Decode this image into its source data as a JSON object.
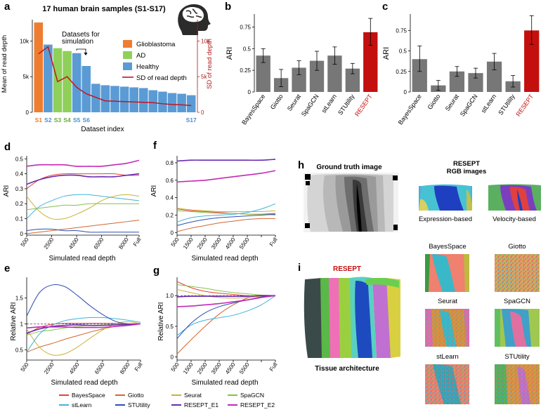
{
  "panels": {
    "a": {
      "letter": "a",
      "title": "17 human brain samples (S1-S17)",
      "annotation": "Datasets for\nsimulation",
      "secondary_ylabel": "SD of read depth"
    },
    "h": {
      "letter": "h",
      "ground_truth_title": "Ground truth image",
      "rgb_title": "RESEPT\nRGB images",
      "label_expression": "Expression-based",
      "label_velocity": "Velocity-based"
    },
    "i": {
      "letter": "i",
      "resept_title": "RESEPT",
      "caption": "Tissue architecture",
      "method_labels": [
        "BayesSpace",
        "Giotto",
        "Seurat",
        "SpaGCN",
        "stLearn",
        "STUtility"
      ]
    }
  },
  "legend": [
    {
      "name": "BayesSpace",
      "color": "#e8413a"
    },
    {
      "name": "Giotto",
      "color": "#d2672f"
    },
    {
      "name": "Seurat",
      "color": "#c9b236"
    },
    {
      "name": "SpaGCN",
      "color": "#86c149"
    },
    {
      "name": "stLearn",
      "color": "#3fb3d8"
    },
    {
      "name": "STUtility",
      "color": "#2c4fb3"
    },
    {
      "name": "RESEPT_E1",
      "color": "#6a2bb0"
    },
    {
      "name": "RESEPT_E2",
      "color": "#c229b8"
    }
  ],
  "chart_data": [
    {
      "id": "a",
      "type": "bar",
      "xlabel": "Dataset index",
      "ylabel": "Mean of read depth",
      "ylim": [
        0,
        13000
      ],
      "yticks": [
        0,
        5000,
        10000
      ],
      "ytick_labels": [
        "0",
        "5k",
        "10k"
      ],
      "y2ticks": [
        0,
        5000,
        10000
      ],
      "y2tick_labels": [
        "0",
        "5k",
        "10k"
      ],
      "x_labels": [
        {
          "i": 1,
          "text": "S1",
          "color": "#ef7d31"
        },
        {
          "i": 2,
          "text": "S2",
          "color": "#4a8fd2"
        },
        {
          "i": 3,
          "text": "S3",
          "color": "#6aab3a"
        },
        {
          "i": 4,
          "text": "S4",
          "color": "#6aab3a"
        },
        {
          "i": 5,
          "text": "S5",
          "color": "#4a8fd2"
        },
        {
          "i": 6,
          "text": "S6",
          "color": "#4a8fd2"
        },
        {
          "i": 17,
          "text": "S17",
          "color": "#4a8fd2"
        }
      ],
      "values": [
        12600,
        9500,
        9000,
        8600,
        8300,
        6500,
        4000,
        3800,
        3700,
        3600,
        3500,
        3400,
        3100,
        2900,
        2700,
        2600,
        2400
      ],
      "groups": [
        "Glioblastoma",
        "Healthy",
        "AD",
        "AD",
        "Healthy",
        "Healthy",
        "Healthy",
        "Healthy",
        "Healthy",
        "Healthy",
        "Healthy",
        "Healthy",
        "Healthy",
        "Healthy",
        "Healthy",
        "Healthy",
        "Healthy"
      ],
      "sd_values": [
        8200,
        9200,
        4300,
        5000,
        3500,
        2600,
        2100,
        1600,
        1550,
        1500,
        1450,
        1400,
        1350,
        1200,
        1100,
        1050,
        950
      ],
      "legend": [
        {
          "name": "Glioblastoma",
          "color": "#ef7d31"
        },
        {
          "name": "AD",
          "color": "#8fd05a"
        },
        {
          "name": "Healthy",
          "color": "#5b9bd5"
        },
        {
          "name": "SD of read depth",
          "color": "#c0161f"
        }
      ]
    },
    {
      "id": "b",
      "letter": "b",
      "type": "bar",
      "ylabel": "ARI",
      "ylim": [
        0,
        0.9
      ],
      "yticks": [
        0,
        0.25,
        0.5,
        0.75
      ],
      "ytick_labels": [
        "0",
        "0.25",
        "0.5",
        "0.75"
      ],
      "categories": [
        "BayesSpace",
        "Giotto",
        "Seurat",
        "SpaGCN",
        "stLearn",
        "STUtility",
        "RESEPT"
      ],
      "values": [
        0.42,
        0.16,
        0.28,
        0.36,
        0.42,
        0.27,
        0.69
      ],
      "err_low": [
        0.34,
        0.06,
        0.2,
        0.25,
        0.32,
        0.21,
        0.54
      ],
      "err_high": [
        0.5,
        0.26,
        0.36,
        0.47,
        0.52,
        0.33,
        0.85
      ],
      "colors": [
        "#777777",
        "#777777",
        "#777777",
        "#777777",
        "#777777",
        "#777777",
        "#c40f0f"
      ]
    },
    {
      "id": "c",
      "letter": "c",
      "type": "bar",
      "ylabel": "ARI",
      "ylim": [
        0,
        0.95
      ],
      "yticks": [
        0,
        0.25,
        0.5,
        0.75
      ],
      "ytick_labels": [
        "0",
        "0.25",
        "0.5",
        "0.75"
      ],
      "categories": [
        "BayesSpace",
        "Giotto",
        "Seurat",
        "SpaGCN",
        "stLearn",
        "STUtility",
        "RESEPT"
      ],
      "values": [
        0.4,
        0.08,
        0.25,
        0.23,
        0.37,
        0.13,
        0.75
      ],
      "err_low": [
        0.25,
        0.02,
        0.19,
        0.17,
        0.27,
        0.06,
        0.58
      ],
      "err_high": [
        0.56,
        0.14,
        0.31,
        0.29,
        0.47,
        0.2,
        0.93
      ],
      "colors": [
        "#777777",
        "#777777",
        "#777777",
        "#777777",
        "#777777",
        "#777777",
        "#c40f0f"
      ]
    },
    {
      "id": "d",
      "letter": "d",
      "type": "line",
      "xlabel": "Simulated read depth",
      "ylabel": "ARI",
      "ylim": [
        -0.01,
        0.52
      ],
      "yticks": [
        0,
        0.1,
        0.2,
        0.3,
        0.4,
        0.5
      ],
      "ytick_labels": [
        "0",
        "0.1",
        "0.2",
        "0.3",
        "0.4",
        "0.5"
      ],
      "x": [
        0,
        1,
        2,
        3,
        4,
        5,
        6,
        7,
        8,
        9
      ],
      "xlim": [
        0,
        9
      ],
      "xticks": [
        0,
        2,
        4,
        6,
        8,
        9
      ],
      "xtick_labels": [
        "500",
        "2500",
        "4500",
        "6500",
        "8000",
        "Full"
      ],
      "series": [
        {
          "name": "BayesSpace",
          "values": [
            0.3,
            0.36,
            0.39,
            0.4,
            0.4,
            0.4,
            0.4,
            0.4,
            0.39,
            0.39
          ]
        },
        {
          "name": "Giotto",
          "values": [
            0.0,
            0.01,
            0.02,
            0.03,
            0.04,
            0.05,
            0.06,
            0.07,
            0.08,
            0.09
          ]
        },
        {
          "name": "Seurat",
          "values": [
            0.25,
            0.15,
            0.1,
            0.1,
            0.13,
            0.17,
            0.22,
            0.25,
            0.26,
            0.25
          ]
        },
        {
          "name": "SpaGCN",
          "values": [
            0.16,
            0.17,
            0.18,
            0.19,
            0.19,
            0.2,
            0.2,
            0.2,
            0.2,
            0.2
          ]
        },
        {
          "name": "stLearn",
          "values": [
            0.1,
            0.18,
            0.22,
            0.25,
            0.26,
            0.26,
            0.25,
            0.24,
            0.23,
            0.22
          ]
        },
        {
          "name": "STUtility",
          "values": [
            0.02,
            0.03,
            0.03,
            0.02,
            0.02,
            0.01,
            0.01,
            0.01,
            0.01,
            0.01
          ]
        },
        {
          "name": "RESEPT_E1",
          "values": [
            0.33,
            0.36,
            0.38,
            0.39,
            0.39,
            0.38,
            0.38,
            0.38,
            0.39,
            0.4
          ]
        },
        {
          "name": "RESEPT_E2",
          "values": [
            0.45,
            0.46,
            0.46,
            0.46,
            0.45,
            0.45,
            0.45,
            0.46,
            0.47,
            0.49
          ]
        }
      ]
    },
    {
      "id": "f",
      "letter": "f",
      "type": "line",
      "xlabel": "Simulated read depth",
      "ylabel": "ARI",
      "ylim": [
        -0.03,
        0.88
      ],
      "yticks": [
        0,
        0.2,
        0.4,
        0.6,
        0.8
      ],
      "ytick_labels": [
        "0",
        "0.2",
        "0.4",
        "0.6",
        "0.8"
      ],
      "x": [
        0,
        1,
        2,
        3,
        4,
        5,
        6,
        7
      ],
      "xlim": [
        0,
        7
      ],
      "xticks": [
        0,
        1,
        2,
        3,
        4,
        5,
        6,
        7
      ],
      "xtick_labels": [
        "500",
        "1500",
        "2500",
        "3500",
        "4500",
        "5500",
        "",
        "Full"
      ],
      "series": [
        {
          "name": "BayesSpace",
          "values": [
            0.27,
            0.25,
            0.24,
            0.23,
            0.22,
            0.21,
            0.21,
            0.22
          ]
        },
        {
          "name": "Giotto",
          "values": [
            0.01,
            0.05,
            0.08,
            0.11,
            0.13,
            0.15,
            0.16,
            0.16
          ]
        },
        {
          "name": "Seurat",
          "values": [
            0.28,
            0.26,
            0.25,
            0.24,
            0.24,
            0.24,
            0.24,
            0.25
          ]
        },
        {
          "name": "SpaGCN",
          "values": [
            0.25,
            0.24,
            0.23,
            0.22,
            0.22,
            0.21,
            0.21,
            0.2
          ]
        },
        {
          "name": "stLearn",
          "values": [
            0.12,
            0.17,
            0.19,
            0.2,
            0.21,
            0.23,
            0.27,
            0.33
          ]
        },
        {
          "name": "STUtility",
          "values": [
            0.08,
            0.12,
            0.15,
            0.17,
            0.18,
            0.19,
            0.2,
            0.21
          ]
        },
        {
          "name": "RESEPT_E1",
          "values": [
            0.82,
            0.83,
            0.83,
            0.83,
            0.83,
            0.83,
            0.83,
            0.84
          ]
        },
        {
          "name": "RESEPT_E2",
          "values": [
            0.58,
            0.59,
            0.6,
            0.62,
            0.64,
            0.66,
            0.68,
            0.71
          ]
        }
      ]
    },
    {
      "id": "e",
      "letter": "e",
      "type": "line",
      "xlabel": "Simulated read depth",
      "ylabel": "Relative ARI",
      "ylim": [
        0.3,
        1.9
      ],
      "yticks": [
        0.5,
        1,
        1.5
      ],
      "ytick_labels": [
        "0.5",
        "1",
        "1.5"
      ],
      "reference_line": 1,
      "x": [
        0,
        1,
        2,
        3,
        4,
        5,
        6,
        7,
        8,
        9
      ],
      "xlim": [
        0,
        9
      ],
      "xticks": [
        0,
        2,
        4,
        6,
        8,
        9
      ],
      "xtick_labels": [
        "500",
        "2500",
        "4500",
        "6500",
        "8000",
        "Full"
      ],
      "series": [
        {
          "name": "BayesSpace",
          "values": [
            0.8,
            0.93,
            0.99,
            1.01,
            1.01,
            1.01,
            1.01,
            1.01,
            1.0,
            1.0
          ]
        },
        {
          "name": "Giotto",
          "values": [
            0.45,
            0.55,
            0.62,
            0.7,
            0.77,
            0.84,
            0.9,
            0.95,
            0.98,
            1.0
          ]
        },
        {
          "name": "Seurat",
          "values": [
            0.9,
            0.55,
            0.4,
            0.42,
            0.55,
            0.72,
            0.88,
            1.0,
            1.04,
            1.0
          ]
        },
        {
          "name": "SpaGCN",
          "values": [
            0.78,
            0.85,
            0.88,
            0.92,
            0.95,
            0.97,
            0.98,
            0.99,
            1.0,
            1.0
          ]
        },
        {
          "name": "stLearn",
          "values": [
            0.45,
            0.8,
            0.97,
            1.06,
            1.1,
            1.12,
            1.12,
            1.1,
            1.07,
            1.03
          ]
        },
        {
          "name": "STUtility",
          "values": [
            1.15,
            1.6,
            1.75,
            1.72,
            1.55,
            1.35,
            1.18,
            1.05,
            1.0,
            1.0
          ]
        },
        {
          "name": "RESEPT_E1",
          "values": [
            0.82,
            0.9,
            0.95,
            0.97,
            0.98,
            0.97,
            0.97,
            0.98,
            0.99,
            1.0
          ]
        },
        {
          "name": "RESEPT_E2",
          "values": [
            0.92,
            0.94,
            0.94,
            0.94,
            0.93,
            0.93,
            0.93,
            0.95,
            0.97,
            1.0
          ]
        }
      ]
    },
    {
      "id": "g",
      "letter": "g",
      "type": "line",
      "xlabel": "Simulated read depth",
      "ylabel": "Relative ARI",
      "ylim": [
        -0.05,
        1.3
      ],
      "yticks": [
        0,
        0.5,
        1
      ],
      "ytick_labels": [
        "0",
        "0.5",
        "1.0"
      ],
      "reference_line": 1,
      "x": [
        0,
        1,
        2,
        3,
        4,
        5,
        6,
        7
      ],
      "xlim": [
        0,
        7
      ],
      "xticks": [
        0,
        1,
        2,
        3,
        4,
        5,
        6,
        7
      ],
      "xtick_labels": [
        "500",
        "1500",
        "2500",
        "3500",
        "4500",
        "5500",
        "",
        "Full"
      ],
      "series": [
        {
          "name": "BayesSpace",
          "values": [
            1.23,
            1.13,
            1.07,
            1.04,
            1.02,
            1.0,
            0.99,
            1.0
          ]
        },
        {
          "name": "Giotto",
          "values": [
            0.05,
            0.28,
            0.5,
            0.7,
            0.85,
            0.96,
            1.0,
            1.0
          ]
        },
        {
          "name": "Seurat",
          "values": [
            1.1,
            1.05,
            1.0,
            0.97,
            0.96,
            0.97,
            0.99,
            1.0
          ]
        },
        {
          "name": "SpaGCN",
          "values": [
            1.18,
            1.15,
            1.12,
            1.08,
            1.05,
            1.03,
            1.01,
            1.0
          ]
        },
        {
          "name": "stLearn",
          "values": [
            0.35,
            0.52,
            0.6,
            0.64,
            0.68,
            0.75,
            0.85,
            1.0
          ]
        },
        {
          "name": "STUtility",
          "values": [
            0.3,
            0.55,
            0.72,
            0.82,
            0.88,
            0.93,
            0.98,
            1.0
          ]
        },
        {
          "name": "RESEPT_E1",
          "values": [
            0.98,
            0.99,
            0.99,
            0.99,
            0.99,
            0.99,
            1.0,
            1.0
          ]
        },
        {
          "name": "RESEPT_E2",
          "values": [
            0.82,
            0.83,
            0.85,
            0.87,
            0.9,
            0.93,
            0.97,
            1.0
          ]
        }
      ]
    }
  ]
}
